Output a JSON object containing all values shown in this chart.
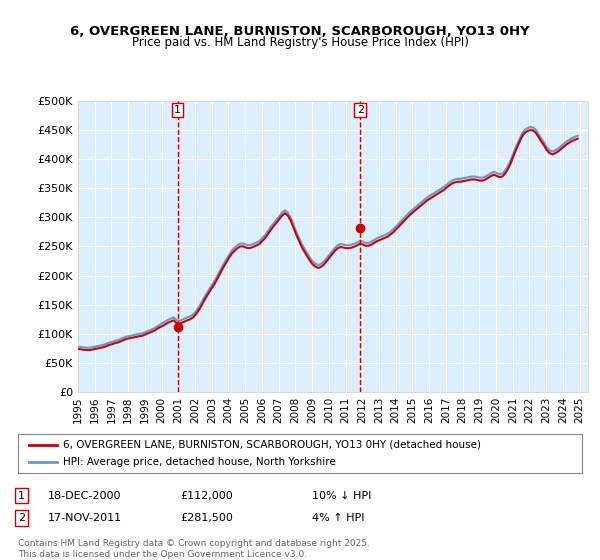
{
  "title_line1": "6, OVERGREEN LANE, BURNISTON, SCARBOROUGH, YO13 0HY",
  "title_line2": "Price paid vs. HM Land Registry's House Price Index (HPI)",
  "ylabel": "",
  "background_color": "#ffffff",
  "plot_bg_color": "#ddeeff",
  "grid_color": "#ffffff",
  "red_line_color": "#cc0000",
  "blue_line_color": "#6699cc",
  "ylim": [
    0,
    500000
  ],
  "yticks": [
    0,
    50000,
    100000,
    150000,
    200000,
    250000,
    300000,
    350000,
    400000,
    450000,
    500000
  ],
  "ytick_labels": [
    "£0",
    "£50K",
    "£100K",
    "£150K",
    "£200K",
    "£250K",
    "£300K",
    "£350K",
    "£400K",
    "£450K",
    "£500K"
  ],
  "xlim_start": 1995.0,
  "xlim_end": 2025.5,
  "xticks": [
    1995,
    1996,
    1997,
    1998,
    1999,
    2000,
    2001,
    2002,
    2003,
    2004,
    2005,
    2006,
    2007,
    2008,
    2009,
    2010,
    2011,
    2012,
    2013,
    2014,
    2015,
    2016,
    2017,
    2018,
    2019,
    2020,
    2021,
    2022,
    2023,
    2024,
    2025
  ],
  "sale1_x": 2000.96,
  "sale1_y": 112000,
  "sale1_label": "1",
  "sale1_date": "18-DEC-2000",
  "sale1_price": "£112,000",
  "sale1_hpi": "10% ↓ HPI",
  "sale2_x": 2011.88,
  "sale2_y": 281500,
  "sale2_label": "2",
  "sale2_date": "17-NOV-2011",
  "sale2_price": "£281,500",
  "sale2_hpi": "4% ↑ HPI",
  "legend_line1": "6, OVERGREEN LANE, BURNISTON, SCARBOROUGH, YO13 0HY (detached house)",
  "legend_line2": "HPI: Average price, detached house, North Yorkshire",
  "footer_line1": "Contains HM Land Registry data © Crown copyright and database right 2025.",
  "footer_line2": "This data is licensed under the Open Government Licence v3.0.",
  "hpi_data": {
    "years": [
      1995.04,
      1995.21,
      1995.38,
      1995.54,
      1995.71,
      1995.88,
      1996.04,
      1996.21,
      1996.38,
      1996.54,
      1996.71,
      1996.88,
      1997.04,
      1997.21,
      1997.38,
      1997.54,
      1997.71,
      1997.88,
      1998.04,
      1998.21,
      1998.38,
      1998.54,
      1998.71,
      1998.88,
      1999.04,
      1999.21,
      1999.38,
      1999.54,
      1999.71,
      1999.88,
      2000.04,
      2000.21,
      2000.38,
      2000.54,
      2000.71,
      2000.88,
      2001.04,
      2001.21,
      2001.38,
      2001.54,
      2001.71,
      2001.88,
      2002.04,
      2002.21,
      2002.38,
      2002.54,
      2002.71,
      2002.88,
      2003.04,
      2003.21,
      2003.38,
      2003.54,
      2003.71,
      2003.88,
      2004.04,
      2004.21,
      2004.38,
      2004.54,
      2004.71,
      2004.88,
      2005.04,
      2005.21,
      2005.38,
      2005.54,
      2005.71,
      2005.88,
      2006.04,
      2006.21,
      2006.38,
      2006.54,
      2006.71,
      2006.88,
      2007.04,
      2007.21,
      2007.38,
      2007.54,
      2007.71,
      2007.88,
      2008.04,
      2008.21,
      2008.38,
      2008.54,
      2008.71,
      2008.88,
      2009.04,
      2009.21,
      2009.38,
      2009.54,
      2009.71,
      2009.88,
      2010.04,
      2010.21,
      2010.38,
      2010.54,
      2010.71,
      2010.88,
      2011.04,
      2011.21,
      2011.38,
      2011.54,
      2011.71,
      2011.88,
      2012.04,
      2012.21,
      2012.38,
      2012.54,
      2012.71,
      2012.88,
      2013.04,
      2013.21,
      2013.38,
      2013.54,
      2013.71,
      2013.88,
      2014.04,
      2014.21,
      2014.38,
      2014.54,
      2014.71,
      2014.88,
      2015.04,
      2015.21,
      2015.38,
      2015.54,
      2015.71,
      2015.88,
      2016.04,
      2016.21,
      2016.38,
      2016.54,
      2016.71,
      2016.88,
      2017.04,
      2017.21,
      2017.38,
      2017.54,
      2017.71,
      2017.88,
      2018.04,
      2018.21,
      2018.38,
      2018.54,
      2018.71,
      2018.88,
      2019.04,
      2019.21,
      2019.38,
      2019.54,
      2019.71,
      2019.88,
      2020.04,
      2020.21,
      2020.38,
      2020.54,
      2020.71,
      2020.88,
      2021.04,
      2021.21,
      2021.38,
      2021.54,
      2021.71,
      2021.88,
      2022.04,
      2022.21,
      2022.38,
      2022.54,
      2022.71,
      2022.88,
      2023.04,
      2023.21,
      2023.38,
      2023.54,
      2023.71,
      2023.88,
      2024.04,
      2024.21,
      2024.38,
      2024.54,
      2024.71,
      2024.88
    ],
    "values": [
      78000,
      77000,
      76500,
      76000,
      76000,
      77000,
      78000,
      79000,
      80000,
      81000,
      83000,
      85000,
      86000,
      88000,
      89000,
      91000,
      93000,
      95000,
      96000,
      97000,
      98000,
      99000,
      100000,
      101000,
      103000,
      105000,
      107000,
      109000,
      112000,
      115000,
      118000,
      121000,
      124000,
      126000,
      128000,
      124000,
      122000,
      124000,
      126000,
      128000,
      130000,
      133000,
      138000,
      145000,
      153000,
      162000,
      170000,
      178000,
      185000,
      193000,
      202000,
      211000,
      220000,
      228000,
      236000,
      243000,
      248000,
      252000,
      255000,
      255000,
      253000,
      252000,
      253000,
      255000,
      257000,
      260000,
      265000,
      270000,
      277000,
      284000,
      290000,
      296000,
      302000,
      308000,
      312000,
      308000,
      300000,
      288000,
      276000,
      265000,
      254000,
      246000,
      238000,
      230000,
      224000,
      220000,
      218000,
      220000,
      224000,
      230000,
      236000,
      242000,
      248000,
      252000,
      254000,
      253000,
      252000,
      252000,
      253000,
      255000,
      257000,
      260000,
      258000,
      256000,
      256000,
      258000,
      261000,
      264000,
      266000,
      268000,
      270000,
      272000,
      276000,
      280000,
      285000,
      290000,
      295000,
      300000,
      305000,
      310000,
      314000,
      318000,
      322000,
      326000,
      330000,
      334000,
      337000,
      340000,
      343000,
      346000,
      349000,
      352000,
      356000,
      360000,
      363000,
      365000,
      366000,
      366000,
      367000,
      368000,
      369000,
      370000,
      370000,
      369000,
      368000,
      368000,
      370000,
      373000,
      376000,
      378000,
      376000,
      374000,
      375000,
      380000,
      388000,
      398000,
      410000,
      422000,
      433000,
      443000,
      450000,
      453000,
      455000,
      454000,
      450000,
      443000,
      435000,
      428000,
      420000,
      415000,
      413000,
      415000,
      418000,
      422000,
      426000,
      430000,
      433000,
      436000,
      438000,
      440000
    ]
  },
  "price_data": {
    "years": [
      1995.04,
      1995.21,
      1995.38,
      1995.54,
      1995.71,
      1995.88,
      1996.04,
      1996.21,
      1996.38,
      1996.54,
      1996.71,
      1996.88,
      1997.04,
      1997.21,
      1997.38,
      1997.54,
      1997.71,
      1997.88,
      1998.04,
      1998.21,
      1998.38,
      1998.54,
      1998.71,
      1998.88,
      1999.04,
      1999.21,
      1999.38,
      1999.54,
      1999.71,
      1999.88,
      2000.04,
      2000.21,
      2000.38,
      2000.54,
      2000.71,
      2000.88,
      2001.04,
      2001.21,
      2001.38,
      2001.54,
      2001.71,
      2001.88,
      2002.04,
      2002.21,
      2002.38,
      2002.54,
      2002.71,
      2002.88,
      2003.04,
      2003.21,
      2003.38,
      2003.54,
      2003.71,
      2003.88,
      2004.04,
      2004.21,
      2004.38,
      2004.54,
      2004.71,
      2004.88,
      2005.04,
      2005.21,
      2005.38,
      2005.54,
      2005.71,
      2005.88,
      2006.04,
      2006.21,
      2006.38,
      2006.54,
      2006.71,
      2006.88,
      2007.04,
      2007.21,
      2007.38,
      2007.54,
      2007.71,
      2007.88,
      2008.04,
      2008.21,
      2008.38,
      2008.54,
      2008.71,
      2008.88,
      2009.04,
      2009.21,
      2009.38,
      2009.54,
      2009.71,
      2009.88,
      2010.04,
      2010.21,
      2010.38,
      2010.54,
      2010.71,
      2010.88,
      2011.04,
      2011.21,
      2011.38,
      2011.54,
      2011.71,
      2011.88,
      2012.04,
      2012.21,
      2012.38,
      2012.54,
      2012.71,
      2012.88,
      2013.04,
      2013.21,
      2013.38,
      2013.54,
      2013.71,
      2013.88,
      2014.04,
      2014.21,
      2014.38,
      2014.54,
      2014.71,
      2014.88,
      2015.04,
      2015.21,
      2015.38,
      2015.54,
      2015.71,
      2015.88,
      2016.04,
      2016.21,
      2016.38,
      2016.54,
      2016.71,
      2016.88,
      2017.04,
      2017.21,
      2017.38,
      2017.54,
      2017.71,
      2017.88,
      2018.04,
      2018.21,
      2018.38,
      2018.54,
      2018.71,
      2018.88,
      2019.04,
      2019.21,
      2019.38,
      2019.54,
      2019.71,
      2019.88,
      2020.04,
      2020.21,
      2020.38,
      2020.54,
      2020.71,
      2020.88,
      2021.04,
      2021.21,
      2021.38,
      2021.54,
      2021.71,
      2021.88,
      2022.04,
      2022.21,
      2022.38,
      2022.54,
      2022.71,
      2022.88,
      2023.04,
      2023.21,
      2023.38,
      2023.54,
      2023.71,
      2023.88,
      2024.04,
      2024.21,
      2024.38,
      2024.54,
      2024.71,
      2024.88
    ],
    "values": [
      74000,
      73000,
      72500,
      72000,
      72000,
      73000,
      74000,
      75000,
      76000,
      77000,
      79000,
      81000,
      82000,
      84000,
      85000,
      87000,
      89000,
      91000,
      92000,
      93000,
      94000,
      95000,
      96000,
      97000,
      99000,
      101000,
      103000,
      105000,
      108000,
      111000,
      113000,
      116000,
      119000,
      121000,
      123000,
      119000,
      117000,
      119000,
      121000,
      123000,
      125000,
      128000,
      133000,
      140000,
      148000,
      157000,
      165000,
      173000,
      180000,
      188000,
      197000,
      206000,
      215000,
      223000,
      231000,
      238000,
      243000,
      247000,
      250000,
      250000,
      248000,
      247000,
      248000,
      250000,
      252000,
      255000,
      260000,
      265000,
      272000,
      279000,
      285000,
      291000,
      297000,
      303000,
      307000,
      303000,
      295000,
      283000,
      271000,
      260000,
      249000,
      241000,
      233000,
      225000,
      219000,
      215000,
      213000,
      215000,
      219000,
      225000,
      231000,
      237000,
      243000,
      247000,
      249000,
      248000,
      247000,
      247000,
      248000,
      250000,
      252000,
      255000,
      253000,
      251000,
      251000,
      253000,
      256000,
      259000,
      261000,
      263000,
      265000,
      267000,
      271000,
      275000,
      280000,
      285000,
      290000,
      295000,
      300000,
      305000,
      309000,
      313000,
      317000,
      321000,
      325000,
      329000,
      332000,
      335000,
      338000,
      341000,
      344000,
      347000,
      351000,
      355000,
      358000,
      360000,
      361000,
      361000,
      362000,
      363000,
      364000,
      365000,
      365000,
      364000,
      363000,
      363000,
      365000,
      368000,
      371000,
      373000,
      371000,
      369000,
      370000,
      375000,
      383000,
      393000,
      405000,
      417000,
      428000,
      438000,
      445000,
      448000,
      450000,
      449000,
      445000,
      438000,
      430000,
      423000,
      415000,
      410000,
      408000,
      410000,
      413000,
      417000,
      421000,
      425000,
      428000,
      431000,
      433000,
      435000
    ]
  }
}
